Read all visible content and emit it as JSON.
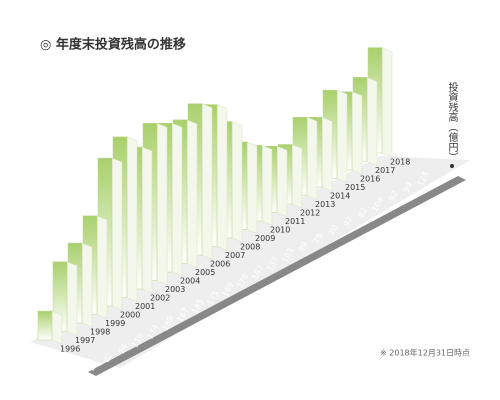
{
  "chart_data": {
    "type": "bar",
    "title": "◎ 年度末投資残高の推移",
    "y_label": "投資残高（億円）",
    "note": "※ 2018年12月31日時点",
    "categories": [
      "1996",
      "1997",
      "1998",
      "1999",
      "2000",
      "2001",
      "2002",
      "2003",
      "2004",
      "2005",
      "2006",
      "2007",
      "2008",
      "2009",
      "2010",
      "2011",
      "2012",
      "2013",
      "2014",
      "2015",
      "2016",
      "2017",
      "2018"
    ],
    "values": [
      34,
      82,
      94,
      116,
      174,
      189,
      167,
      185,
      175,
      169,
      178,
      167,
      137,
      103,
      89,
      78,
      70,
      92,
      82,
      104,
      92,
      99,
      124
    ],
    "color": "#a9d06c"
  }
}
